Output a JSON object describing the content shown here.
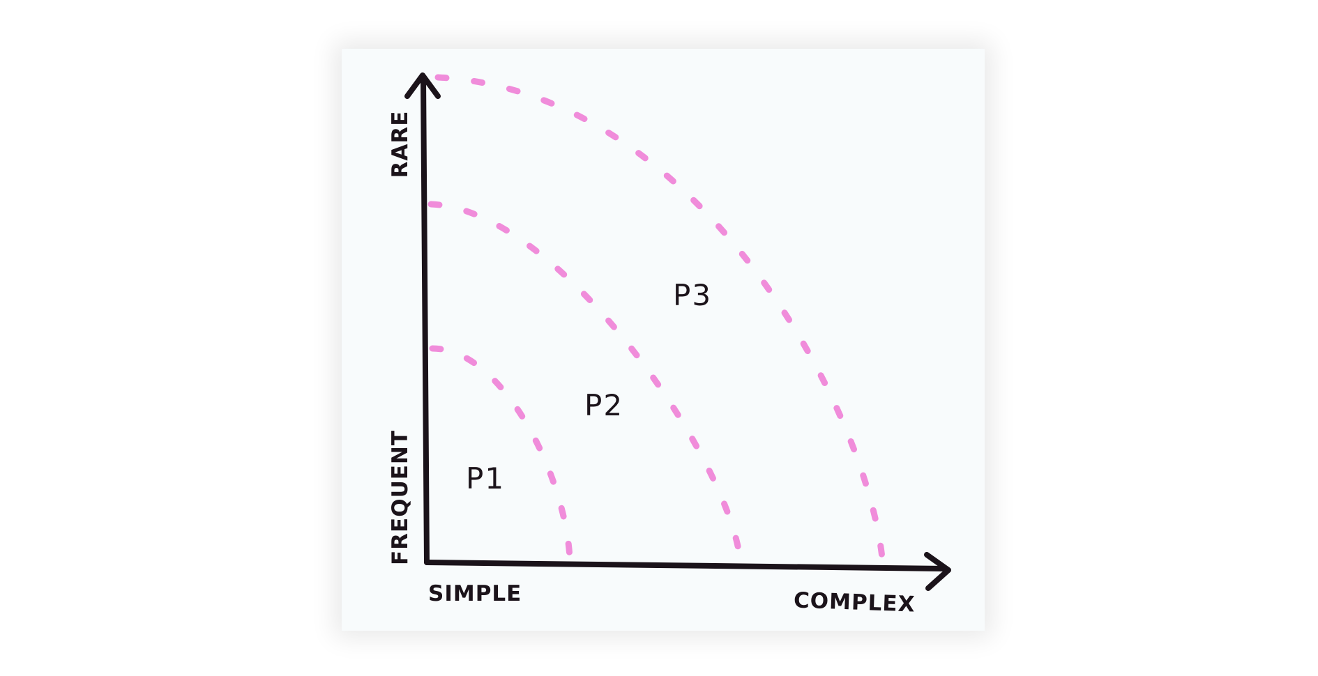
{
  "axes": {
    "y_top_label": "RARE",
    "y_bottom_label": "FREQUENT",
    "x_left_label": "SIMPLE",
    "x_right_label": "COMPLEX"
  },
  "regions": [
    {
      "label": "P1"
    },
    {
      "label": "P2"
    },
    {
      "label": "P3"
    }
  ],
  "colors": {
    "ink": "#1b131a",
    "boundary": "#ee7fd6",
    "paper": "#f8fbfc"
  }
}
